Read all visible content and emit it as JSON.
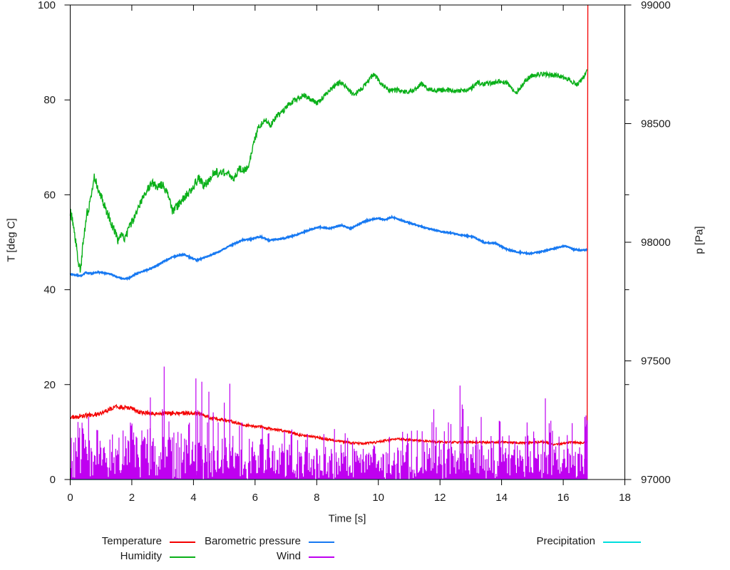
{
  "chart_data": {
    "type": "line",
    "title": "",
    "xlabel": "Time [s]",
    "ylabel": "T [deg C]",
    "y2label": "p [Pa]",
    "x_axis": {
      "min": 0,
      "max": 18,
      "ticks": [
        "0",
        "2",
        "4",
        "6",
        "8",
        "10",
        "12",
        "14",
        "16",
        "18"
      ]
    },
    "y_axis": {
      "min": 0,
      "max": 100,
      "ticks": [
        "0",
        "20",
        "40",
        "60",
        "80",
        "100"
      ]
    },
    "y2_axis": {
      "min": 97000,
      "max": 99000,
      "ticks": [
        "97000",
        "97500",
        "98000",
        "98500",
        "99000"
      ]
    },
    "grid": false,
    "legend_position": "below",
    "data_end_time": 16.78,
    "noise_seed": 20240601,
    "series": [
      {
        "name": "Temperature",
        "color": "#f40000",
        "axis": "y1",
        "points": [
          [
            0,
            13.0
          ],
          [
            0.3,
            13.4
          ],
          [
            0.6,
            13.5
          ],
          [
            0.9,
            13.8
          ],
          [
            1.2,
            14.6
          ],
          [
            1.5,
            15.3
          ],
          [
            1.8,
            15.2
          ],
          [
            2.0,
            15.0
          ],
          [
            2.25,
            14.2
          ],
          [
            2.6,
            14.0
          ],
          [
            2.9,
            13.9
          ],
          [
            3.2,
            14.0
          ],
          [
            3.6,
            13.9
          ],
          [
            3.9,
            14.1
          ],
          [
            4.15,
            13.9
          ],
          [
            4.35,
            13.5
          ],
          [
            4.6,
            12.9
          ],
          [
            4.9,
            12.6
          ],
          [
            5.2,
            12.3
          ],
          [
            5.6,
            11.5
          ],
          [
            5.9,
            11.3
          ],
          [
            6.2,
            11.0
          ],
          [
            6.5,
            10.7
          ],
          [
            6.8,
            10.4
          ],
          [
            7.1,
            10.0
          ],
          [
            7.5,
            9.3
          ],
          [
            7.9,
            9.0
          ],
          [
            8.3,
            8.5
          ],
          [
            8.7,
            8.1
          ],
          [
            9.1,
            7.7
          ],
          [
            9.5,
            7.6
          ],
          [
            9.9,
            7.8
          ],
          [
            10.3,
            8.3
          ],
          [
            10.6,
            8.6
          ],
          [
            10.9,
            8.4
          ],
          [
            11.3,
            8.2
          ],
          [
            11.7,
            8.0
          ],
          [
            12.1,
            7.9
          ],
          [
            12.5,
            7.85
          ],
          [
            13.0,
            7.9
          ],
          [
            13.5,
            7.8
          ],
          [
            14.0,
            7.9
          ],
          [
            14.5,
            7.7
          ],
          [
            15.0,
            7.8
          ],
          [
            15.4,
            7.9
          ],
          [
            15.7,
            7.3
          ],
          [
            16.0,
            7.6
          ],
          [
            16.3,
            7.9
          ],
          [
            16.55,
            7.7
          ],
          [
            16.78,
            7.9
          ]
        ],
        "noise_amp": [
          [
            0,
            0.5
          ],
          [
            1.5,
            0.45
          ],
          [
            3,
            0.45
          ],
          [
            5,
            0.3
          ],
          [
            8,
            0.25
          ],
          [
            16.8,
            0.2
          ]
        ],
        "end_spike": {
          "t": 16.8,
          "top": 100
        }
      },
      {
        "name": "Humidity",
        "color": "#0ab019",
        "axis": "y1",
        "points": [
          [
            0,
            56.5
          ],
          [
            0.08,
            54.5
          ],
          [
            0.18,
            50.0
          ],
          [
            0.28,
            45.5
          ],
          [
            0.33,
            43.7
          ],
          [
            0.42,
            50.0
          ],
          [
            0.5,
            54.0
          ],
          [
            0.56,
            56.5
          ],
          [
            0.62,
            57.5
          ],
          [
            0.7,
            61.0
          ],
          [
            0.78,
            63.6
          ],
          [
            0.85,
            62.5
          ],
          [
            0.95,
            60.8
          ],
          [
            1.1,
            57.8
          ],
          [
            1.25,
            55.5
          ],
          [
            1.4,
            53.0
          ],
          [
            1.55,
            50.5
          ],
          [
            1.65,
            51.8
          ],
          [
            1.78,
            50.8
          ],
          [
            1.95,
            53.5
          ],
          [
            2.1,
            55.5
          ],
          [
            2.3,
            58.5
          ],
          [
            2.5,
            61.0
          ],
          [
            2.65,
            62.4
          ],
          [
            2.85,
            61.7
          ],
          [
            3.0,
            62.2
          ],
          [
            3.15,
            60.5
          ],
          [
            3.32,
            56.5
          ],
          [
            3.45,
            57.5
          ],
          [
            3.6,
            58.5
          ],
          [
            3.75,
            59.8
          ],
          [
            3.95,
            61.5
          ],
          [
            4.17,
            63.4
          ],
          [
            4.35,
            61.9
          ],
          [
            4.55,
            63.5
          ],
          [
            4.7,
            65.0
          ],
          [
            4.85,
            64.3
          ],
          [
            5.0,
            64.8
          ],
          [
            5.15,
            64.4
          ],
          [
            5.32,
            63.4
          ],
          [
            5.5,
            65.6
          ],
          [
            5.65,
            65.2
          ],
          [
            5.8,
            66.2
          ],
          [
            5.95,
            71.0
          ],
          [
            6.1,
            74.0
          ],
          [
            6.2,
            74.9
          ],
          [
            6.32,
            75.9
          ],
          [
            6.5,
            74.6
          ],
          [
            6.7,
            76.5
          ],
          [
            6.9,
            77.5
          ],
          [
            7.05,
            78.7
          ],
          [
            7.3,
            80.0
          ],
          [
            7.6,
            80.9
          ],
          [
            7.8,
            80.2
          ],
          [
            8.0,
            79.2
          ],
          [
            8.2,
            80.5
          ],
          [
            8.5,
            82.5
          ],
          [
            8.78,
            83.9
          ],
          [
            9.0,
            82.5
          ],
          [
            9.2,
            80.9
          ],
          [
            9.45,
            82.3
          ],
          [
            9.65,
            83.8
          ],
          [
            9.85,
            85.4
          ],
          [
            10.1,
            83.4
          ],
          [
            10.35,
            81.9
          ],
          [
            10.6,
            82.1
          ],
          [
            10.9,
            81.7
          ],
          [
            11.15,
            82.0
          ],
          [
            11.4,
            83.4
          ],
          [
            11.6,
            82.4
          ],
          [
            11.9,
            81.9
          ],
          [
            12.2,
            82.1
          ],
          [
            12.5,
            81.8
          ],
          [
            12.8,
            82.0
          ],
          [
            13.0,
            82.3
          ],
          [
            13.2,
            83.7
          ],
          [
            13.45,
            83.3
          ],
          [
            13.7,
            83.6
          ],
          [
            13.95,
            84.0
          ],
          [
            14.2,
            83.5
          ],
          [
            14.45,
            81.3
          ],
          [
            14.6,
            82.5
          ],
          [
            14.8,
            84.3
          ],
          [
            15.0,
            85.2
          ],
          [
            15.3,
            85.5
          ],
          [
            15.6,
            85.3
          ],
          [
            15.9,
            85.0
          ],
          [
            16.1,
            84.5
          ],
          [
            16.3,
            83.8
          ],
          [
            16.45,
            83.2
          ],
          [
            16.6,
            84.3
          ],
          [
            16.7,
            85.3
          ],
          [
            16.78,
            86.8
          ]
        ],
        "noise_amp": [
          [
            0,
            1.1
          ],
          [
            1,
            1.0
          ],
          [
            3,
            0.9
          ],
          [
            5,
            0.9
          ],
          [
            6.5,
            0.6
          ],
          [
            10,
            0.5
          ],
          [
            16.8,
            0.5
          ]
        ]
      },
      {
        "name": "Barometric pressure",
        "color": "#1779f2",
        "axis": "y2",
        "points": [
          [
            0,
            97866
          ],
          [
            0.2,
            97862
          ],
          [
            0.35,
            97858
          ],
          [
            0.5,
            97872
          ],
          [
            0.7,
            97868
          ],
          [
            0.9,
            97874
          ],
          [
            1.1,
            97870
          ],
          [
            1.3,
            97866
          ],
          [
            1.55,
            97852
          ],
          [
            1.75,
            97846
          ],
          [
            1.9,
            97848
          ],
          [
            2.1,
            97864
          ],
          [
            2.35,
            97878
          ],
          [
            2.6,
            97888
          ],
          [
            2.85,
            97904
          ],
          [
            3.05,
            97920
          ],
          [
            3.3,
            97936
          ],
          [
            3.55,
            97946
          ],
          [
            3.7,
            97948
          ],
          [
            3.9,
            97936
          ],
          [
            4.1,
            97924
          ],
          [
            4.3,
            97932
          ],
          [
            4.55,
            97946
          ],
          [
            4.8,
            97958
          ],
          [
            5.05,
            97976
          ],
          [
            5.3,
            97992
          ],
          [
            5.6,
            98010
          ],
          [
            5.85,
            98012
          ],
          [
            6.05,
            98020
          ],
          [
            6.17,
            98024
          ],
          [
            6.45,
            98008
          ],
          [
            6.7,
            98012
          ],
          [
            7.0,
            98018
          ],
          [
            7.35,
            98032
          ],
          [
            7.8,
            98054
          ],
          [
            8.1,
            98064
          ],
          [
            8.4,
            98058
          ],
          [
            8.8,
            98072
          ],
          [
            9.1,
            98058
          ],
          [
            9.55,
            98088
          ],
          [
            9.98,
            98102
          ],
          [
            10.2,
            98094
          ],
          [
            10.45,
            98106
          ],
          [
            10.9,
            98086
          ],
          [
            11.3,
            98070
          ],
          [
            11.6,
            98058
          ],
          [
            12.0,
            98046
          ],
          [
            12.4,
            98038
          ],
          [
            12.8,
            98028
          ],
          [
            13.1,
            98022
          ],
          [
            13.45,
            97998
          ],
          [
            13.8,
            97996
          ],
          [
            14.2,
            97968
          ],
          [
            14.55,
            97958
          ],
          [
            14.9,
            97952
          ],
          [
            15.2,
            97958
          ],
          [
            15.6,
            97970
          ],
          [
            16.05,
            97984
          ],
          [
            16.35,
            97970
          ],
          [
            16.55,
            97966
          ],
          [
            16.78,
            97968
          ]
        ],
        "noise_amp": [
          [
            0,
            2.6
          ],
          [
            16.8,
            2.6
          ]
        ]
      },
      {
        "name": "Wind",
        "color": "#bf00f0",
        "axis": "y1",
        "envelope": [
          [
            0,
            8.5,
            14
          ],
          [
            0.5,
            8.5,
            14.5
          ],
          [
            1.0,
            8.3,
            13.5
          ],
          [
            1.5,
            8.2,
            13
          ],
          [
            2.0,
            8.2,
            14
          ],
          [
            2.5,
            8.0,
            13.5
          ],
          [
            3.0,
            8.0,
            15
          ],
          [
            3.5,
            7.8,
            14
          ],
          [
            4.0,
            7.6,
            15
          ],
          [
            4.5,
            7.4,
            14.5
          ],
          [
            5.0,
            7.0,
            14
          ],
          [
            5.5,
            6.3,
            12.5
          ],
          [
            6.0,
            6.0,
            12
          ],
          [
            6.5,
            5.8,
            11
          ],
          [
            7.0,
            5.6,
            11
          ],
          [
            7.5,
            5.6,
            10.5
          ],
          [
            8.0,
            5.6,
            11.5
          ],
          [
            8.5,
            5.5,
            10.5
          ],
          [
            9.0,
            5.6,
            11.5
          ],
          [
            9.5,
            5.8,
            12
          ],
          [
            10.0,
            5.5,
            10.5
          ],
          [
            10.5,
            5.5,
            10
          ],
          [
            11.0,
            5.6,
            11
          ],
          [
            11.5,
            6.0,
            12.5
          ],
          [
            12.0,
            6.8,
            14.5
          ],
          [
            12.5,
            7.0,
            15
          ],
          [
            13.0,
            7.0,
            15
          ],
          [
            13.5,
            6.9,
            14
          ],
          [
            14.0,
            6.6,
            13
          ],
          [
            14.5,
            6.2,
            12.5
          ],
          [
            15.0,
            6.2,
            13
          ],
          [
            15.5,
            6.5,
            14
          ],
          [
            16.0,
            6.2,
            12.5
          ],
          [
            16.5,
            6.2,
            13
          ],
          [
            16.78,
            6.2,
            13
          ]
        ],
        "spikes": [
          [
            2.6,
            17.3
          ],
          [
            3.05,
            23.8
          ],
          [
            4.08,
            21.3
          ],
          [
            4.27,
            20.6
          ],
          [
            4.5,
            18.5
          ],
          [
            5.0,
            16.2
          ],
          [
            5.18,
            20.2
          ],
          [
            11.8,
            14.8
          ],
          [
            12.65,
            19.8
          ],
          [
            12.72,
            15.8
          ],
          [
            15.42,
            17.1
          ],
          [
            16.7,
            13.2
          ],
          [
            16.74,
            13.5
          ],
          [
            16.78,
            12.5
          ]
        ],
        "gap_prob": 0.12,
        "spike_prob": 0.28
      },
      {
        "name": "Precipitation",
        "color": "#00dede",
        "axis": "y1",
        "points": [
          [
            0,
            0
          ],
          [
            16.78,
            0
          ]
        ],
        "noise_amp": [
          [
            0,
            0
          ],
          [
            16.8,
            0
          ]
        ]
      }
    ]
  },
  "legend": {
    "entries": [
      {
        "label": "Temperature",
        "color": "#f40000"
      },
      {
        "label": "Humidity",
        "color": "#0ab019"
      },
      {
        "label": "Barometric pressure",
        "color": "#1779f2"
      },
      {
        "label": "Wind",
        "color": "#bf00f0"
      },
      {
        "label": "Precipitation",
        "color": "#00dede"
      }
    ]
  }
}
